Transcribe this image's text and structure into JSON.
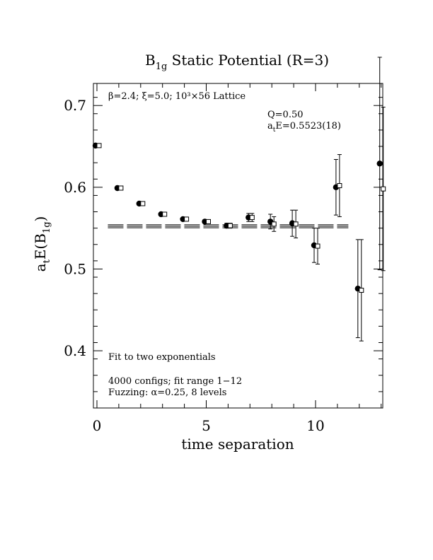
{
  "chart_data": {
    "type": "scatter",
    "title": {
      "main": "B",
      "sub": "1g",
      "rest": " Static Potential (R=3)"
    },
    "xlabel": "time separation",
    "ylabel": {
      "a": "a",
      "t": "t",
      "E": "E(B",
      "sub": "1g",
      "close": ")"
    },
    "xlim": [
      0,
      13
    ],
    "ylim": [
      0.33,
      0.727
    ],
    "x_ticks": [
      0,
      5,
      10
    ],
    "x_tick_labels": [
      "0",
      "5",
      "10"
    ],
    "y_ticks": [
      0.4,
      0.5,
      0.6,
      0.7
    ],
    "y_tick_labels": [
      "0.4",
      "0.5",
      "0.6",
      "0.7"
    ],
    "annotations": {
      "lattice": "β=2.4; ξ=5.0; 10³×56 Lattice",
      "q": "Q=0.50",
      "energy_a": "a",
      "energy_t": "t",
      "energy_rest": "E=0.5523(18)",
      "fit_type": "Fit to two exponentials",
      "configs": "4000 configs; fit range 1−12",
      "fuzzing": "Fuzzing: α=0.25, 8 levels"
    },
    "series": [
      {
        "marker": "filled-circle",
        "points": [
          {
            "x": 0,
            "y": 0.651,
            "err": 0.002
          },
          {
            "x": 1,
            "y": 0.599,
            "err": 0.002
          },
          {
            "x": 2,
            "y": 0.58,
            "err": 0.002
          },
          {
            "x": 3,
            "y": 0.567,
            "err": 0.002
          },
          {
            "x": 4,
            "y": 0.561,
            "err": 0.002
          },
          {
            "x": 5,
            "y": 0.558,
            "err": 0.002
          },
          {
            "x": 6,
            "y": 0.553,
            "err": 0.003
          },
          {
            "x": 7,
            "y": 0.563,
            "err": 0.005
          },
          {
            "x": 8,
            "y": 0.558,
            "err": 0.009
          },
          {
            "x": 9,
            "y": 0.556,
            "err": 0.016
          },
          {
            "x": 10,
            "y": 0.529,
            "err": 0.021
          },
          {
            "x": 11,
            "y": 0.6,
            "err": 0.034
          },
          {
            "x": 12,
            "y": 0.476,
            "err": 0.06
          },
          {
            "x": 13,
            "y": 0.629,
            "err": 0.13
          }
        ]
      },
      {
        "marker": "open-square",
        "points": [
          {
            "x": 0,
            "y": 0.651,
            "err": 0.002
          },
          {
            "x": 1,
            "y": 0.599,
            "err": 0.002
          },
          {
            "x": 2,
            "y": 0.58,
            "err": 0.002
          },
          {
            "x": 3,
            "y": 0.567,
            "err": 0.002
          },
          {
            "x": 4,
            "y": 0.561,
            "err": 0.002
          },
          {
            "x": 5,
            "y": 0.558,
            "err": 0.002
          },
          {
            "x": 6,
            "y": 0.553,
            "err": 0.003
          },
          {
            "x": 7,
            "y": 0.563,
            "err": 0.005
          },
          {
            "x": 8,
            "y": 0.555,
            "err": 0.009
          },
          {
            "x": 9,
            "y": 0.555,
            "err": 0.017
          },
          {
            "x": 10,
            "y": 0.528,
            "err": 0.022
          },
          {
            "x": 11,
            "y": 0.602,
            "err": 0.038
          },
          {
            "x": 12,
            "y": 0.474,
            "err": 0.062
          },
          {
            "x": 13,
            "y": 0.598,
            "err": 0.1
          }
        ]
      }
    ],
    "fit": {
      "value": 0.5523,
      "error": 0.0018,
      "x_start": 0.5,
      "x_end": 11.5
    }
  }
}
